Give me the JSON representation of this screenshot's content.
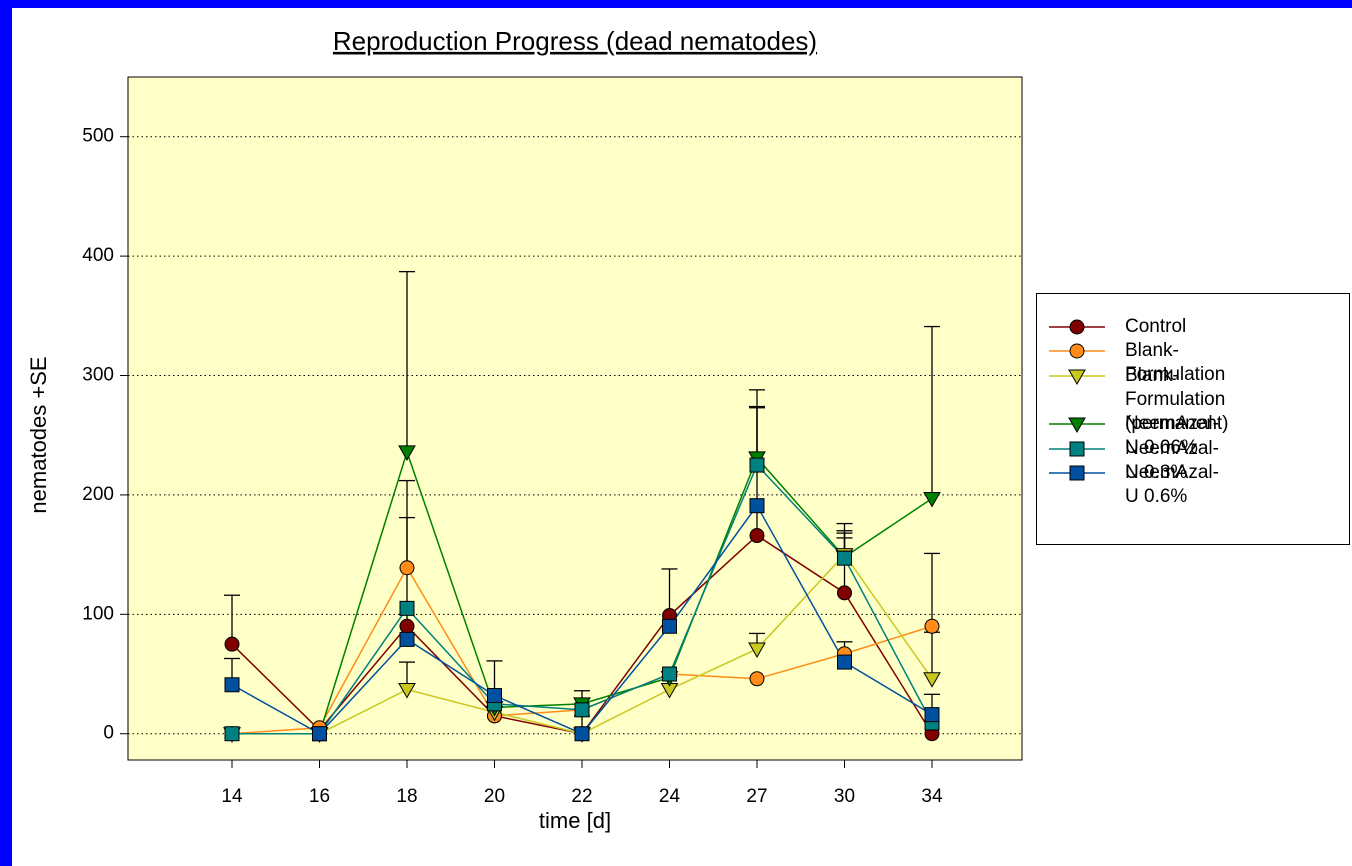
{
  "chart_data": {
    "type": "line",
    "title": "Reproduction Progress (dead nematodes)",
    "x_label": "time [d]",
    "y_label": "nematodes +SE",
    "categories": [
      "14",
      "16",
      "18",
      "20",
      "22",
      "24",
      "27",
      "30",
      "34"
    ],
    "ylim": [
      -22,
      550
    ],
    "yticks": [
      0,
      100,
      200,
      300,
      400,
      500
    ],
    "grid": true,
    "legend": "right",
    "series": [
      {
        "name": "Control",
        "color": "#800000",
        "marker": "circle",
        "values": [
          75,
          3,
          90,
          15,
          0,
          99,
          166,
          118,
          0
        ],
        "errors": [
          41,
          null,
          91,
          null,
          null,
          39,
          108,
          58,
          null
        ]
      },
      {
        "name": "Blank-Formulation",
        "color": "#ff8c1a",
        "marker": "circle",
        "values": [
          0,
          5,
          139,
          15,
          20,
          50,
          46,
          67,
          90
        ],
        "errors": [
          null,
          null,
          73,
          null,
          null,
          null,
          null,
          10,
          61
        ]
      },
      {
        "name": "Blank-Formulation\n(permanent)",
        "color": "#c8c820",
        "marker": "triangle-down",
        "values": [
          0,
          0,
          37,
          18,
          0,
          37,
          71,
          150,
          46
        ],
        "errors": [
          null,
          null,
          23,
          null,
          null,
          11,
          13,
          18,
          39
        ]
      },
      {
        "name": "NeemAzal-U 0.06%",
        "color": "#008000",
        "marker": "triangle-down",
        "values": [
          0,
          0,
          236,
          22,
          25,
          47,
          231,
          148,
          197
        ],
        "errors": [
          null,
          null,
          151,
          null,
          11,
          null,
          57,
          22,
          144
        ]
      },
      {
        "name": "NeemAzal-U 0.3%",
        "color": "#008080",
        "marker": "square",
        "values": [
          0,
          0,
          105,
          25,
          20,
          50,
          225,
          147,
          9
        ],
        "errors": [
          null,
          null,
          null,
          null,
          null,
          null,
          48,
          17,
          null
        ]
      },
      {
        "name": "NeemAzal-U 0.6%",
        "color": "#0050a0",
        "marker": "square",
        "values": [
          41,
          0,
          79,
          32,
          0,
          90,
          191,
          60,
          16
        ],
        "errors": [
          22,
          null,
          null,
          29,
          15,
          null,
          null,
          null,
          17
        ]
      }
    ]
  }
}
